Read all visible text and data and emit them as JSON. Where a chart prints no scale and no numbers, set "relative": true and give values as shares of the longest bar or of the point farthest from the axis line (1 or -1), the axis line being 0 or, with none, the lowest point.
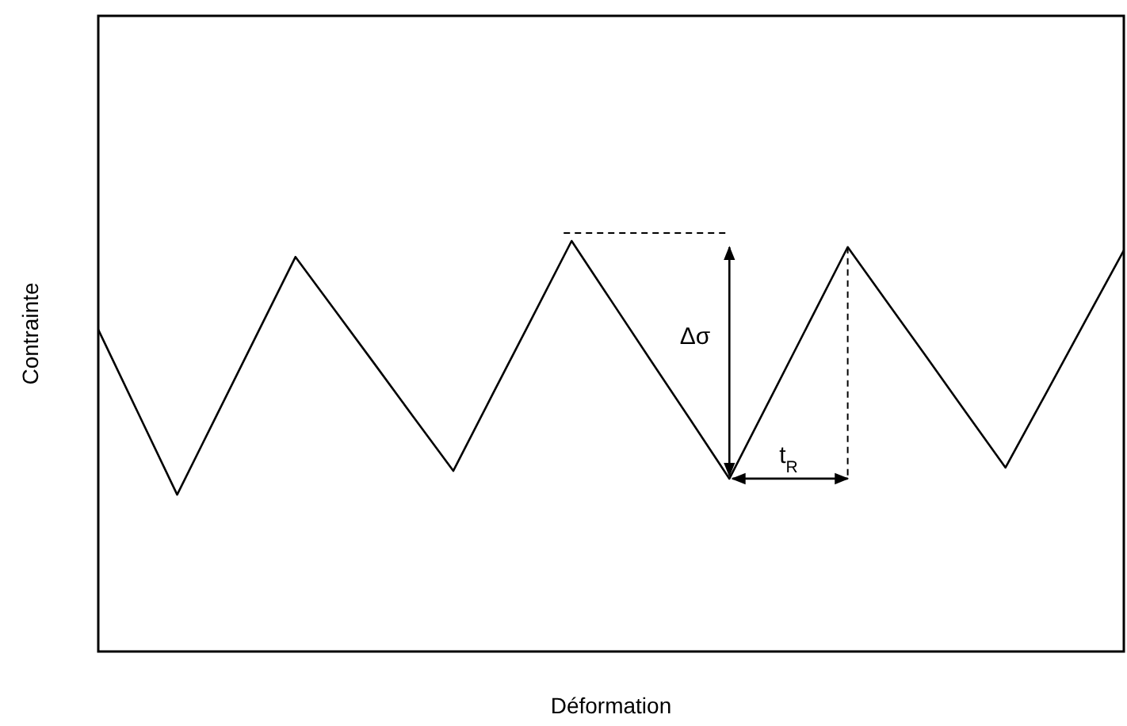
{
  "chart_data": {
    "type": "line",
    "relative": true,
    "xlabel": "Déformation",
    "ylabel": "Contrainte",
    "marker": "none",
    "line_style": "solid",
    "categories": [
      null,
      null,
      null,
      null,
      null,
      null,
      null,
      null,
      null,
      null,
      null,
      null,
      null,
      null,
      null,
      null,
      null,
      null,
      null,
      null,
      null,
      null,
      null,
      null,
      null,
      null,
      null
    ],
    "series": [
      {
        "color": "#000000",
        "values": [
          0.784,
          0.583,
          0.382,
          0.575,
          0.768,
          0.961,
          0.831,
          0.701,
          0.57,
          0.44,
          0.627,
          0.813,
          1,
          0.855,
          0.71,
          0.566,
          0.421,
          0.609,
          0.797,
          0.985,
          0.851,
          0.717,
          0.582,
          0.448,
          0.624,
          0.801,
          0.977
        ]
      }
    ],
    "annotations": [
      "Δσ",
      "t$_{R}$"
    ]
  }
}
